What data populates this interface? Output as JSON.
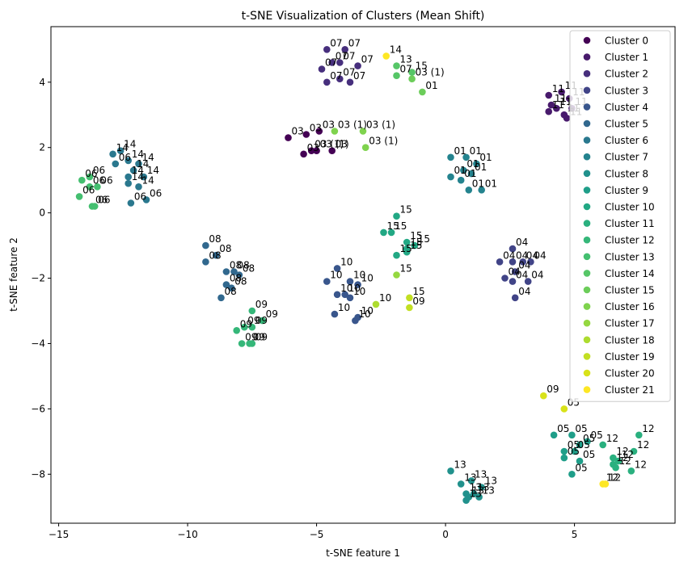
{
  "chart_data": {
    "type": "scatter",
    "title": "t-SNE Visualization of Clusters (Mean Shift)",
    "xlabel": "t-SNE feature 1",
    "ylabel": "t-SNE feature 2",
    "xlim": [
      -15.3,
      8.9
    ],
    "ylim": [
      -9.5,
      5.7
    ],
    "xticks": [
      -15,
      -10,
      -5,
      0,
      5
    ],
    "yticks": [
      -8,
      -6,
      -4,
      -2,
      0,
      2,
      4
    ],
    "xtick_labels": [
      "−15",
      "−10",
      "−5",
      "0",
      "5"
    ],
    "ytick_labels": [
      "−8",
      "−6",
      "−4",
      "−2",
      "0",
      "2",
      "4"
    ],
    "grid": false,
    "legend_position": "top-right",
    "colormap": "viridis",
    "series": [
      {
        "name": "Cluster 0",
        "color": "#440154",
        "points": [
          [
            -6.1,
            2.3,
            "03"
          ],
          [
            -5.0,
            1.9,
            "03 (1)"
          ],
          [
            -5.5,
            1.8,
            "03"
          ],
          [
            -5.2,
            1.9,
            "03 (1)"
          ],
          [
            -5.4,
            2.4,
            "03"
          ],
          [
            -4.9,
            2.5,
            "03"
          ],
          [
            -4.4,
            1.9,
            "03"
          ]
        ]
      },
      {
        "name": "Cluster 1",
        "color": "#481a6c",
        "points": [
          [
            4.0,
            3.6,
            "11"
          ],
          [
            4.5,
            3.7,
            "11"
          ],
          [
            4.1,
            3.3,
            "11"
          ],
          [
            4.3,
            3.2,
            "11"
          ],
          [
            4.8,
            3.5,
            "11"
          ],
          [
            4.6,
            3.0,
            "11"
          ],
          [
            4.0,
            3.1,
            "11"
          ],
          [
            4.7,
            2.9,
            "11"
          ],
          [
            4.9,
            3.2,
            "11"
          ]
        ]
      },
      {
        "name": "Cluster 2",
        "color": "#472f7d",
        "points": [
          [
            -4.6,
            5.0,
            "07"
          ],
          [
            -3.9,
            5.0,
            "07"
          ],
          [
            -4.4,
            4.6,
            "07"
          ],
          [
            -4.1,
            4.6,
            "07"
          ],
          [
            -3.4,
            4.5,
            "07"
          ],
          [
            -4.8,
            4.4,
            "07"
          ],
          [
            -4.1,
            4.1,
            "07"
          ],
          [
            -4.6,
            4.0,
            "07"
          ],
          [
            -3.7,
            4.0,
            "07"
          ]
        ]
      },
      {
        "name": "Cluster 3",
        "color": "#414487",
        "points": [
          [
            2.6,
            -1.1,
            "04"
          ],
          [
            2.1,
            -1.5,
            "04"
          ],
          [
            2.6,
            -1.5,
            "04"
          ],
          [
            3.0,
            -1.5,
            "04"
          ],
          [
            2.7,
            -1.8,
            "04"
          ],
          [
            3.3,
            -1.5,
            "04"
          ],
          [
            2.3,
            -2.0,
            "04"
          ],
          [
            2.6,
            -2.1,
            "04"
          ],
          [
            3.2,
            -2.1,
            "04"
          ],
          [
            2.7,
            -2.6,
            "04"
          ]
        ]
      },
      {
        "name": "Cluster 4",
        "color": "#39568c",
        "points": [
          [
            -4.2,
            -1.7,
            "10"
          ],
          [
            -3.7,
            -2.1,
            "10"
          ],
          [
            -4.6,
            -2.1,
            "10"
          ],
          [
            -3.4,
            -2.2,
            "10"
          ],
          [
            -4.2,
            -2.5,
            "10"
          ],
          [
            -3.9,
            -2.5,
            "10"
          ],
          [
            -3.7,
            -2.6,
            "10"
          ],
          [
            -4.3,
            -3.1,
            "10"
          ],
          [
            -3.4,
            -3.2,
            "10"
          ],
          [
            -3.5,
            -3.3,
            "10"
          ]
        ]
      },
      {
        "name": "Cluster 5",
        "color": "#31688e",
        "points": [
          [
            -9.3,
            -1.0,
            "08"
          ],
          [
            -9.3,
            -1.5,
            "08"
          ],
          [
            -8.9,
            -1.3,
            "08"
          ],
          [
            -8.5,
            -1.8,
            "08"
          ],
          [
            -8.2,
            -1.8,
            "08"
          ],
          [
            -8.0,
            -1.9,
            "08"
          ],
          [
            -8.5,
            -2.2,
            "08"
          ],
          [
            -8.3,
            -2.3,
            "08"
          ],
          [
            -8.7,
            -2.6,
            "08"
          ]
        ]
      },
      {
        "name": "Cluster 6",
        "color": "#2a788e",
        "points": [
          [
            -12.9,
            1.8,
            "14"
          ],
          [
            -12.6,
            1.9,
            "14"
          ],
          [
            -12.8,
            1.5,
            "06"
          ],
          [
            -12.3,
            1.6,
            "14"
          ],
          [
            -11.9,
            1.5,
            "14"
          ],
          [
            -12.1,
            1.3,
            "14"
          ],
          [
            -12.3,
            1.1,
            "14"
          ],
          [
            -11.7,
            1.1,
            "14"
          ],
          [
            -12.3,
            0.9,
            "14"
          ],
          [
            -11.9,
            0.8,
            "14"
          ],
          [
            -12.2,
            0.3,
            "06"
          ],
          [
            -11.6,
            0.4,
            "06"
          ]
        ]
      },
      {
        "name": "Cluster 7",
        "color": "#24838e",
        "points": [
          [
            0.2,
            1.7,
            "01"
          ],
          [
            0.8,
            1.7,
            "01"
          ],
          [
            1.2,
            1.5,
            "01"
          ],
          [
            0.7,
            1.3,
            "01"
          ],
          [
            1.0,
            1.2,
            "01"
          ],
          [
            0.2,
            1.1,
            "01"
          ],
          [
            0.6,
            1.0,
            "01"
          ],
          [
            0.9,
            0.7,
            "01"
          ],
          [
            1.4,
            0.7,
            "01"
          ]
        ]
      },
      {
        "name": "Cluster 8",
        "color": "#21918c",
        "points": [
          [
            0.2,
            -7.9,
            "13"
          ],
          [
            0.6,
            -8.3,
            "13"
          ],
          [
            1.0,
            -8.2,
            "13"
          ],
          [
            1.4,
            -8.4,
            "13"
          ],
          [
            0.8,
            -8.6,
            "13"
          ],
          [
            1.1,
            -8.6,
            "13"
          ],
          [
            0.9,
            -8.7,
            "13"
          ],
          [
            0.8,
            -8.8,
            "13"
          ],
          [
            1.3,
            -8.7,
            "13"
          ]
        ]
      },
      {
        "name": "Cluster 9",
        "color": "#1f9e89",
        "points": [
          [
            4.2,
            -6.8,
            "05"
          ],
          [
            4.9,
            -6.8,
            "05"
          ],
          [
            5.2,
            -7.1,
            "05"
          ],
          [
            5.5,
            -7.0,
            "05"
          ],
          [
            4.6,
            -7.3,
            "05"
          ],
          [
            5.0,
            -7.3,
            "05"
          ],
          [
            4.6,
            -7.5,
            "05"
          ],
          [
            5.2,
            -7.6,
            "05"
          ],
          [
            4.9,
            -8.0,
            "05"
          ]
        ]
      },
      {
        "name": "Cluster 10",
        "color": "#22a884",
        "points": [
          [
            -1.9,
            -0.1,
            "15"
          ],
          [
            -2.4,
            -0.6,
            "15"
          ],
          [
            -2.1,
            -0.6,
            "15"
          ],
          [
            -1.5,
            -0.9,
            "15"
          ],
          [
            -1.2,
            -1.0,
            "15"
          ],
          [
            -1.5,
            -1.1,
            "15"
          ],
          [
            -1.9,
            -1.3,
            "15"
          ],
          [
            -1.5,
            -1.2,
            "15"
          ]
        ]
      },
      {
        "name": "Cluster 11",
        "color": "#2ab07f",
        "points": [
          [
            6.1,
            -7.1,
            "12"
          ],
          [
            7.5,
            -6.8,
            "12"
          ],
          [
            7.3,
            -7.3,
            "12"
          ],
          [
            6.7,
            -7.6,
            "12"
          ],
          [
            7.2,
            -7.9,
            "12"
          ],
          [
            6.5,
            -7.5,
            "12"
          ],
          [
            6.5,
            -7.7,
            "12"
          ],
          [
            6.6,
            -7.8,
            "12"
          ]
        ]
      },
      {
        "name": "Cluster 12",
        "color": "#35b779",
        "points": [
          [
            -8.1,
            -3.6,
            "09"
          ],
          [
            -7.5,
            -3.0,
            "09"
          ],
          [
            -7.1,
            -3.3,
            "09"
          ],
          [
            -7.8,
            -3.5,
            "09"
          ],
          [
            -7.5,
            -3.5,
            "09"
          ],
          [
            -7.9,
            -4.0,
            "09"
          ],
          [
            -7.6,
            -4.0,
            "09"
          ],
          [
            -7.5,
            -4.0,
            "09"
          ]
        ]
      },
      {
        "name": "Cluster 13",
        "color": "#44bf70",
        "points": [
          [
            -14.1,
            1.0,
            "06"
          ],
          [
            -13.8,
            1.1,
            "06"
          ],
          [
            -14.2,
            0.5,
            "06"
          ],
          [
            -13.8,
            0.8,
            "06"
          ],
          [
            -13.5,
            0.8,
            "06"
          ],
          [
            -13.7,
            0.2,
            "06"
          ],
          [
            -13.6,
            0.2,
            "06"
          ]
        ]
      },
      {
        "name": "Cluster 14",
        "color": "#56c667",
        "points": [
          [
            -1.9,
            4.5,
            "13"
          ],
          [
            -1.9,
            4.2,
            "07"
          ],
          [
            -1.3,
            4.3,
            "15"
          ]
        ]
      },
      {
        "name": "Cluster 15",
        "color": "#6ccd5a",
        "points": [
          [
            -1.3,
            4.1,
            "03 (1)"
          ],
          [
            -0.9,
            3.7,
            "01"
          ]
        ]
      },
      {
        "name": "Cluster 16",
        "color": "#7fd34e",
        "points": [
          [
            -3.2,
            2.5,
            "03 (1)"
          ],
          [
            -4.3,
            2.5,
            "03 (1)"
          ],
          [
            -3.1,
            2.0,
            "03 (1)"
          ]
        ]
      },
      {
        "name": "Cluster 17",
        "color": "#95d840",
        "points": [
          [
            -1.9,
            -1.9,
            "15"
          ]
        ]
      },
      {
        "name": "Cluster 18",
        "color": "#addc30",
        "points": [
          [
            -2.7,
            -2.8,
            "10"
          ]
        ]
      },
      {
        "name": "Cluster 19",
        "color": "#c2df23",
        "points": [
          [
            -1.4,
            -2.6,
            "15"
          ],
          [
            -1.4,
            -2.9,
            "09"
          ]
        ]
      },
      {
        "name": "Cluster 20",
        "color": "#d8e219",
        "points": [
          [
            3.8,
            -5.6,
            "09"
          ],
          [
            4.6,
            -6.0,
            "05"
          ]
        ]
      },
      {
        "name": "Cluster 21",
        "color": "#fde725",
        "points": [
          [
            -2.3,
            4.8,
            "14"
          ],
          [
            6.1,
            -8.3,
            "12"
          ],
          [
            6.2,
            -8.3,
            "12"
          ]
        ]
      }
    ]
  }
}
